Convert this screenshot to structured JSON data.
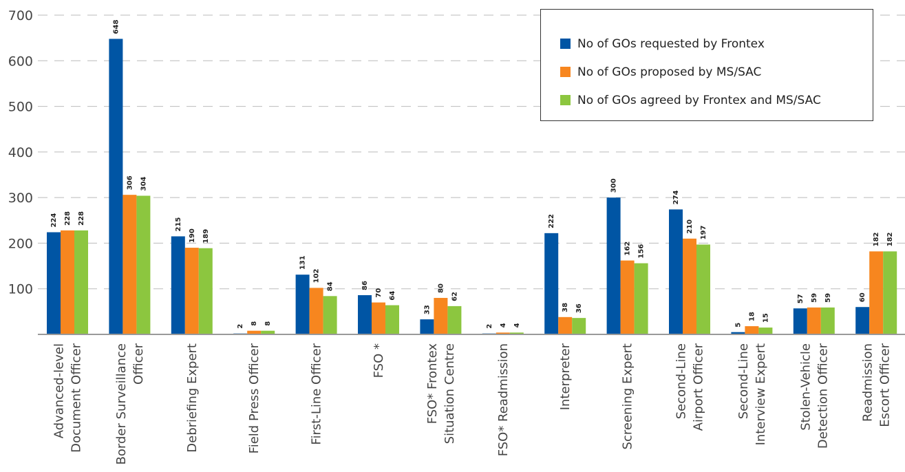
{
  "chart_data": {
    "type": "bar",
    "title": "",
    "xlabel": "",
    "ylabel": "",
    "ylim": [
      0,
      700
    ],
    "yticks": [
      100,
      200,
      300,
      400,
      500,
      600,
      700
    ],
    "grid": true,
    "legend_position": "top-right",
    "categories": [
      [
        "Advanced-level",
        "Document Officer"
      ],
      [
        "Border Surveillance",
        "Officer"
      ],
      [
        "Debriefing Expert"
      ],
      [
        "Field Press Officer"
      ],
      [
        "First-Line Officer"
      ],
      [
        "FSO *"
      ],
      [
        "FSO* Frontex",
        "Situation Centre"
      ],
      [
        "FSO* Readmission"
      ],
      [
        "Interpreter"
      ],
      [
        "Screening Expert"
      ],
      [
        "Second-Line",
        "Airport Officer"
      ],
      [
        "Second-Line",
        "Interview Expert"
      ],
      [
        "Stolen-Vehicle",
        "Detection Officer"
      ],
      [
        "Readmission",
        "Escort Officer"
      ]
    ],
    "series": [
      {
        "name": "No of GOs requested by Frontex",
        "color": "#0055a4",
        "values": [
          224,
          648,
          215,
          2,
          131,
          86,
          33,
          2,
          222,
          300,
          274,
          5,
          57,
          60
        ]
      },
      {
        "name": "No of GOs proposed by MS/SAC",
        "color": "#f7861f",
        "values": [
          228,
          306,
          190,
          8,
          102,
          70,
          80,
          4,
          38,
          162,
          210,
          18,
          59,
          182
        ]
      },
      {
        "name": "No of GOs agreed by Frontex and MS/SAC",
        "color": "#8cc63f",
        "values": [
          228,
          304,
          189,
          8,
          84,
          64,
          62,
          4,
          36,
          156,
          197,
          15,
          59,
          182
        ]
      }
    ]
  }
}
